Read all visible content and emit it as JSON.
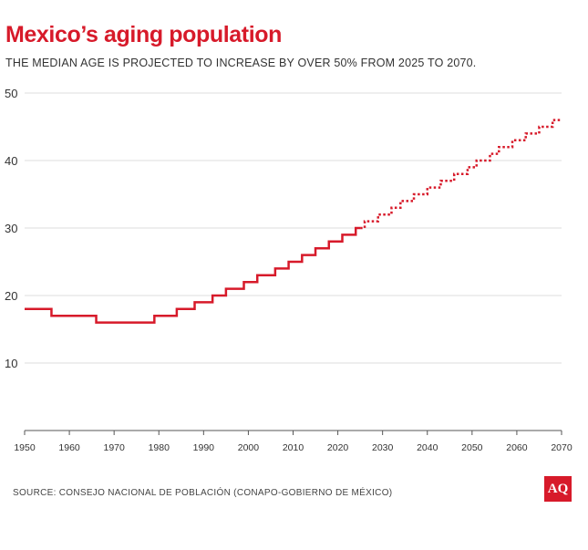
{
  "title": "Mexico’s aging population",
  "subtitle": "THE MEDIAN AGE IS PROJECTED TO INCREASE BY OVER 50% FROM 2025 TO 2070.",
  "source": "SOURCE: CONSEJO NACIONAL DE POBLACIÓN (CONAPO-GOBIERNO DE MÉXICO)",
  "logo": "AQ",
  "colors": {
    "accent": "#d71a2a",
    "grid": "#dddddd",
    "axis": "#555555"
  },
  "chart_data": {
    "type": "line",
    "title": "Mexico’s aging population",
    "subtitle": "THE MEDIAN AGE IS PROJECTED TO INCREASE BY OVER 50% FROM 2025 TO 2070.",
    "xlabel": "",
    "ylabel": "",
    "xlim": [
      1950,
      2070
    ],
    "ylim": [
      0,
      50
    ],
    "x_ticks": [
      1950,
      1960,
      1970,
      1980,
      1990,
      2000,
      2010,
      2020,
      2030,
      2040,
      2050,
      2060,
      2070
    ],
    "y_ticks": [
      10,
      20,
      30,
      40,
      50
    ],
    "grid": true,
    "series": [
      {
        "style": "solid",
        "x": [
          1950,
          1951,
          1952,
          1953,
          1954,
          1955,
          1956,
          1957,
          1958,
          1959,
          1960,
          1961,
          1962,
          1963,
          1964,
          1965,
          1966,
          1967,
          1968,
          1969,
          1970,
          1971,
          1972,
          1973,
          1974,
          1975,
          1976,
          1977,
          1978,
          1979,
          1980,
          1981,
          1982,
          1983,
          1984,
          1985,
          1986,
          1987,
          1988,
          1989,
          1990,
          1991,
          1992,
          1993,
          1994,
          1995,
          1996,
          1997,
          1998,
          1999,
          2000,
          2001,
          2002,
          2003,
          2004,
          2005,
          2006,
          2007,
          2008,
          2009,
          2010,
          2011,
          2012,
          2013,
          2014,
          2015,
          2016,
          2017,
          2018,
          2019,
          2020,
          2021,
          2022,
          2023,
          2024,
          2025
        ],
        "y": [
          18,
          18,
          18,
          18,
          18,
          18,
          17,
          17,
          17,
          17,
          17,
          17,
          17,
          17,
          17,
          17,
          16,
          16,
          16,
          16,
          16,
          16,
          16,
          16,
          16,
          16,
          16,
          16,
          16,
          17,
          17,
          17,
          17,
          17,
          18,
          18,
          18,
          18,
          19,
          19,
          19,
          19,
          20,
          20,
          20,
          21,
          21,
          21,
          21,
          22,
          22,
          22,
          23,
          23,
          23,
          23,
          24,
          24,
          24,
          25,
          25,
          25,
          26,
          26,
          26,
          27,
          27,
          27,
          28,
          28,
          28,
          29,
          29,
          29,
          30,
          30
        ]
      },
      {
        "style": "dotted",
        "x": [
          2025,
          2026,
          2027,
          2028,
          2029,
          2030,
          2031,
          2032,
          2033,
          2034,
          2035,
          2036,
          2037,
          2038,
          2039,
          2040,
          2041,
          2042,
          2043,
          2044,
          2045,
          2046,
          2047,
          2048,
          2049,
          2050,
          2051,
          2052,
          2053,
          2054,
          2055,
          2056,
          2057,
          2058,
          2059,
          2060,
          2061,
          2062,
          2063,
          2064,
          2065,
          2066,
          2067,
          2068,
          2069,
          2070
        ],
        "y": [
          30,
          31,
          31,
          31,
          32,
          32,
          32,
          33,
          33,
          34,
          34,
          34,
          35,
          35,
          35,
          36,
          36,
          36,
          37,
          37,
          37,
          38,
          38,
          38,
          39,
          39,
          40,
          40,
          40,
          41,
          41,
          42,
          42,
          42,
          43,
          43,
          43,
          44,
          44,
          44,
          45,
          45,
          45,
          46,
          46,
          46
        ]
      }
    ]
  }
}
